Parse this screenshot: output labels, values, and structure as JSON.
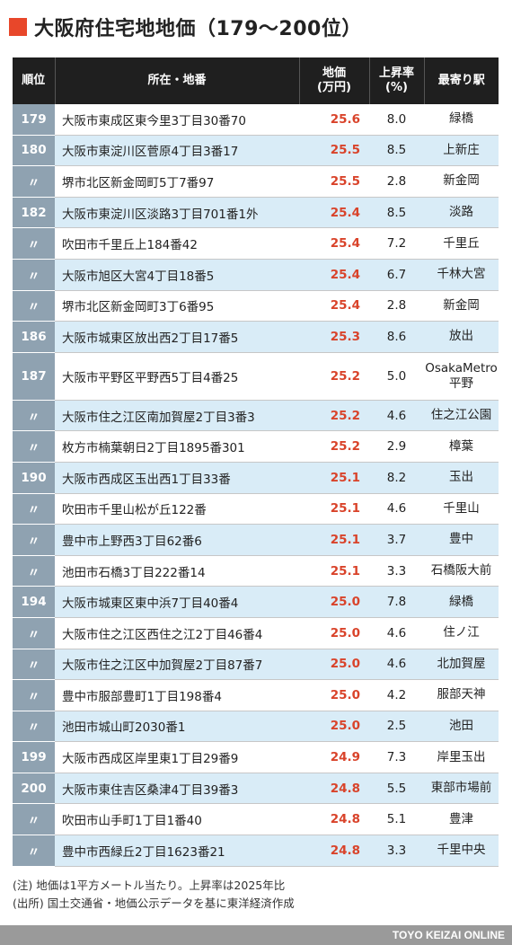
{
  "title": "大阪府住宅地地価（179〜200位）",
  "headers": {
    "rank": "順位",
    "location": "所在・地番",
    "price_line1": "地価",
    "price_line2": "(万円)",
    "rise_line1": "上昇率",
    "rise_line2": "(%)",
    "station": "最寄り駅"
  },
  "rows": [
    {
      "rank": "179",
      "location": "大阪市東成区東今里3丁目30番70",
      "price": "25.6",
      "rise": "8.0",
      "station": "緑橋",
      "station2": ""
    },
    {
      "rank": "180",
      "location": "大阪市東淀川区菅原4丁目3番17",
      "price": "25.5",
      "rise": "8.5",
      "station": "上新庄",
      "station2": ""
    },
    {
      "rank": "〃",
      "location": "堺市北区新金岡町5丁7番97",
      "price": "25.5",
      "rise": "2.8",
      "station": "新金岡",
      "station2": ""
    },
    {
      "rank": "182",
      "location": "大阪市東淀川区淡路3丁目701番1外",
      "price": "25.4",
      "rise": "8.5",
      "station": "淡路",
      "station2": ""
    },
    {
      "rank": "〃",
      "location": "吹田市千里丘上184番42",
      "price": "25.4",
      "rise": "7.2",
      "station": "千里丘",
      "station2": ""
    },
    {
      "rank": "〃",
      "location": "大阪市旭区大宮4丁目18番5",
      "price": "25.4",
      "rise": "6.7",
      "station": "千林大宮",
      "station2": ""
    },
    {
      "rank": "〃",
      "location": "堺市北区新金岡町3丁6番95",
      "price": "25.4",
      "rise": "2.8",
      "station": "新金岡",
      "station2": ""
    },
    {
      "rank": "186",
      "location": "大阪市城東区放出西2丁目17番5",
      "price": "25.3",
      "rise": "8.6",
      "station": "放出",
      "station2": ""
    },
    {
      "rank": "187",
      "location": "大阪市平野区平野西5丁目4番25",
      "price": "25.2",
      "rise": "5.0",
      "station": "OsakaMetro",
      "station2": "平野"
    },
    {
      "rank": "〃",
      "location": "大阪市住之江区南加賀屋2丁目3番3",
      "price": "25.2",
      "rise": "4.6",
      "station": "住之江公園",
      "station2": ""
    },
    {
      "rank": "〃",
      "location": "枚方市楠葉朝日2丁目1895番301",
      "price": "25.2",
      "rise": "2.9",
      "station": "樟葉",
      "station2": ""
    },
    {
      "rank": "190",
      "location": "大阪市西成区玉出西1丁目33番",
      "price": "25.1",
      "rise": "8.2",
      "station": "玉出",
      "station2": ""
    },
    {
      "rank": "〃",
      "location": "吹田市千里山松が丘122番",
      "price": "25.1",
      "rise": "4.6",
      "station": "千里山",
      "station2": ""
    },
    {
      "rank": "〃",
      "location": "豊中市上野西3丁目62番6",
      "price": "25.1",
      "rise": "3.7",
      "station": "豊中",
      "station2": ""
    },
    {
      "rank": "〃",
      "location": "池田市石橋3丁目222番14",
      "price": "25.1",
      "rise": "3.3",
      "station": "石橋阪大前",
      "station2": ""
    },
    {
      "rank": "194",
      "location": "大阪市城東区東中浜7丁目40番4",
      "price": "25.0",
      "rise": "7.8",
      "station": "緑橋",
      "station2": ""
    },
    {
      "rank": "〃",
      "location": "大阪市住之江区西住之江2丁目46番4",
      "price": "25.0",
      "rise": "4.6",
      "station": "住ノ江",
      "station2": ""
    },
    {
      "rank": "〃",
      "location": "大阪市住之江区中加賀屋2丁目87番7",
      "price": "25.0",
      "rise": "4.6",
      "station": "北加賀屋",
      "station2": ""
    },
    {
      "rank": "〃",
      "location": "豊中市服部豊町1丁目198番4",
      "price": "25.0",
      "rise": "4.2",
      "station": "服部天神",
      "station2": ""
    },
    {
      "rank": "〃",
      "location": "池田市城山町2030番1",
      "price": "25.0",
      "rise": "2.5",
      "station": "池田",
      "station2": ""
    },
    {
      "rank": "199",
      "location": "大阪市西成区岸里東1丁目29番9",
      "price": "24.9",
      "rise": "7.3",
      "station": "岸里玉出",
      "station2": ""
    },
    {
      "rank": "200",
      "location": "大阪市東住吉区桑津4丁目39番3",
      "price": "24.8",
      "rise": "5.5",
      "station": "東部市場前",
      "station2": ""
    },
    {
      "rank": "〃",
      "location": "吹田市山手町1丁目1番40",
      "price": "24.8",
      "rise": "5.1",
      "station": "豊津",
      "station2": ""
    },
    {
      "rank": "〃",
      "location": "豊中市西緑丘2丁目1623番21",
      "price": "24.8",
      "rise": "3.3",
      "station": "千里中央",
      "station2": ""
    }
  ],
  "notes": {
    "note1": "(注) 地価は1平方メートル当たり。上昇率は2025年比",
    "note2": "(出所) 国土交通省・地価公示データを基に東洋経済作成"
  },
  "footer": "TOYO KEIZAI ONLINE",
  "colors": {
    "accent": "#e8472a",
    "price": "#d9432a",
    "header_bg": "#1f1f1f",
    "rank_bg": "#8fa2b1",
    "alt_row": "#d9ecf7"
  }
}
